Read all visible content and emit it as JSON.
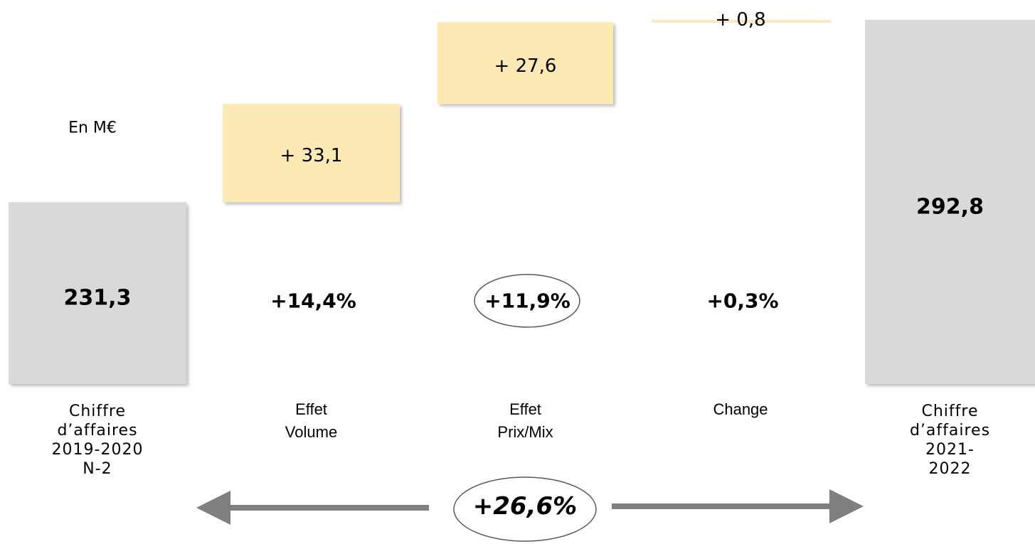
{
  "chart_data": {
    "type": "waterfall",
    "unit_label": "En M€",
    "categories": [
      "Chiffre\nd’affaires\n2019-2020\nN-2",
      "Effet\nVolume",
      "Effet\nPrix/Mix",
      "Change",
      "Chiffre\nd’affaires\n2021-2022"
    ],
    "measure": [
      "absolute",
      "relative",
      "relative",
      "relative",
      "total"
    ],
    "values": [
      231.3,
      33.1,
      27.6,
      0.8,
      292.8
    ],
    "value_labels": [
      "231,3",
      "+ 33,1",
      "+ 27,6",
      "+ 0,8",
      "292,8"
    ],
    "colors": [
      "#d9d9d9",
      "#fce9b4",
      "#fce9b4",
      "#fce9b4",
      "#d9d9d9"
    ],
    "change_labels": [
      null,
      "+14,4%",
      "+11,9%",
      "+0,3%",
      null
    ],
    "total_change": "+26,6%",
    "ylim": [
      170,
      293
    ]
  }
}
